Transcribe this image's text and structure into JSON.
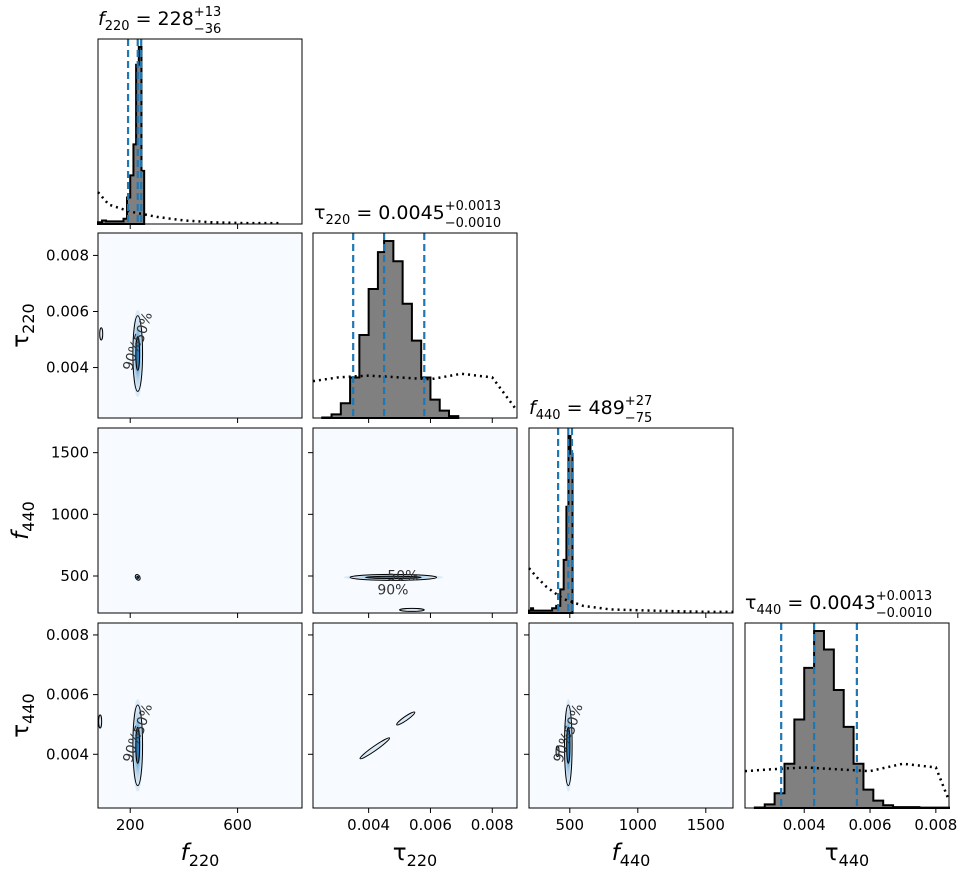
{
  "chart_data": {
    "type": "corner",
    "parameters": [
      {
        "key": "f220",
        "symbol": "f",
        "subscript": "220",
        "range": [
          80,
          840
        ],
        "ticks": [
          200,
          600
        ],
        "tick_labels": [
          "200",
          "600"
        ]
      },
      {
        "key": "tau220",
        "symbol": "τ",
        "subscript": "220",
        "range": [
          0.0022,
          0.0088
        ],
        "ticks": [
          0.004,
          0.006,
          0.008
        ],
        "tick_labels": [
          "0.004",
          "0.006",
          "0.008"
        ]
      },
      {
        "key": "f440",
        "symbol": "f",
        "subscript": "440",
        "range": [
          200,
          1700
        ],
        "ticks": [
          500,
          1000,
          1500
        ],
        "tick_labels": [
          "500",
          "1000",
          "1500"
        ]
      },
      {
        "key": "tau440",
        "symbol": "τ",
        "subscript": "440",
        "range": [
          0.0022,
          0.0084
        ],
        "ticks": [
          0.004,
          0.006,
          0.008
        ],
        "tick_labels": [
          "0.004",
          "0.006",
          "0.008"
        ]
      }
    ],
    "titles": [
      {
        "param": "f220",
        "prefix": "f",
        "sub": "220",
        "eq": " = 228",
        "plus": "+13",
        "minus": "−36"
      },
      {
        "param": "tau220",
        "prefix": "τ",
        "sub": "220",
        "eq": " = 0.0045",
        "plus": "+0.0013",
        "minus": "−0.0010"
      },
      {
        "param": "f440",
        "prefix": "f",
        "sub": "440",
        "eq": " = 489",
        "plus": "+27",
        "minus": "−75"
      },
      {
        "param": "tau440",
        "prefix": "τ",
        "sub": "440",
        "eq": " = 0.0043",
        "plus": "+0.0013",
        "minus": "−0.0010"
      }
    ],
    "marginals": {
      "f220": {
        "median": 228,
        "lower": 192,
        "upper": 241,
        "posterior": [
          [
            80,
            2
          ],
          [
            95,
            4
          ],
          [
            110,
            3
          ],
          [
            175,
            6
          ],
          [
            188,
            30
          ],
          [
            200,
            55
          ],
          [
            212,
            90
          ],
          [
            222,
            180
          ],
          [
            232,
            200
          ],
          [
            242,
            60
          ],
          [
            252,
            0
          ]
        ],
        "prior": [
          [
            80,
            36
          ],
          [
            120,
            22
          ],
          [
            200,
            14
          ],
          [
            300,
            8
          ],
          [
            400,
            4
          ],
          [
            500,
            2
          ],
          [
            620,
            1
          ],
          [
            760,
            1
          ]
        ]
      },
      "tau220": {
        "median": 0.0045,
        "lower": 0.0035,
        "upper": 0.0058,
        "posterior": [
          [
            0.0025,
            0.003
          ],
          [
            0.0028,
            0.02
          ],
          [
            0.0031,
            0.08
          ],
          [
            0.0034,
            0.22
          ],
          [
            0.0037,
            0.45
          ],
          [
            0.004,
            0.7
          ],
          [
            0.0043,
            0.9
          ],
          [
            0.0045,
            0.96
          ],
          [
            0.0048,
            0.85
          ],
          [
            0.0051,
            0.62
          ],
          [
            0.0054,
            0.42
          ],
          [
            0.0057,
            0.22
          ],
          [
            0.006,
            0.1
          ],
          [
            0.0063,
            0.04
          ],
          [
            0.0066,
            0.01
          ],
          [
            0.0069,
            0.003
          ]
        ],
        "prior": [
          [
            0.0022,
            0.2
          ],
          [
            0.003,
            0.22
          ],
          [
            0.004,
            0.23
          ],
          [
            0.005,
            0.22
          ],
          [
            0.006,
            0.21
          ],
          [
            0.007,
            0.24
          ],
          [
            0.008,
            0.22
          ],
          [
            0.0088,
            0.04
          ]
        ]
      },
      "f440": {
        "median": 489,
        "lower": 414,
        "upper": 516,
        "posterior": [
          [
            200,
            2
          ],
          [
            215,
            4
          ],
          [
            230,
            2
          ],
          [
            330,
            2
          ],
          [
            370,
            4
          ],
          [
            400,
            6
          ],
          [
            430,
            20
          ],
          [
            455,
            45
          ],
          [
            475,
            90
          ],
          [
            490,
            150
          ],
          [
            505,
            135
          ],
          [
            520,
            0
          ]
        ],
        "prior": [
          [
            200,
            38
          ],
          [
            260,
            30
          ],
          [
            330,
            22
          ],
          [
            450,
            12
          ],
          [
            600,
            6
          ],
          [
            800,
            3
          ],
          [
            1100,
            2
          ],
          [
            1500,
            1
          ],
          [
            1700,
            1
          ]
        ]
      },
      "tau440": {
        "median": 0.0043,
        "lower": 0.0033,
        "upper": 0.0056,
        "posterior": [
          [
            0.0025,
            0.003
          ],
          [
            0.0028,
            0.02
          ],
          [
            0.0031,
            0.08
          ],
          [
            0.0034,
            0.24
          ],
          [
            0.0037,
            0.48
          ],
          [
            0.004,
            0.76
          ],
          [
            0.0043,
            0.96
          ],
          [
            0.0046,
            0.86
          ],
          [
            0.0049,
            0.64
          ],
          [
            0.0052,
            0.44
          ],
          [
            0.0055,
            0.24
          ],
          [
            0.0058,
            0.1
          ],
          [
            0.0061,
            0.04
          ],
          [
            0.0064,
            0.015
          ],
          [
            0.0067,
            0.005
          ],
          [
            0.0075,
            0.002
          ],
          [
            0.0084,
            0.001
          ]
        ],
        "prior": [
          [
            0.0022,
            0.2
          ],
          [
            0.003,
            0.21
          ],
          [
            0.004,
            0.22
          ],
          [
            0.005,
            0.21
          ],
          [
            0.006,
            0.2
          ],
          [
            0.007,
            0.24
          ],
          [
            0.008,
            0.22
          ],
          [
            0.0084,
            0.04
          ]
        ]
      }
    },
    "contour_labels": [
      "50%",
      "90%"
    ],
    "colors": {
      "median_line": "#1f77b4",
      "posterior_fill": "#808080",
      "density": "#1f77b4",
      "contour": "#000000",
      "prior": "#000000"
    }
  }
}
